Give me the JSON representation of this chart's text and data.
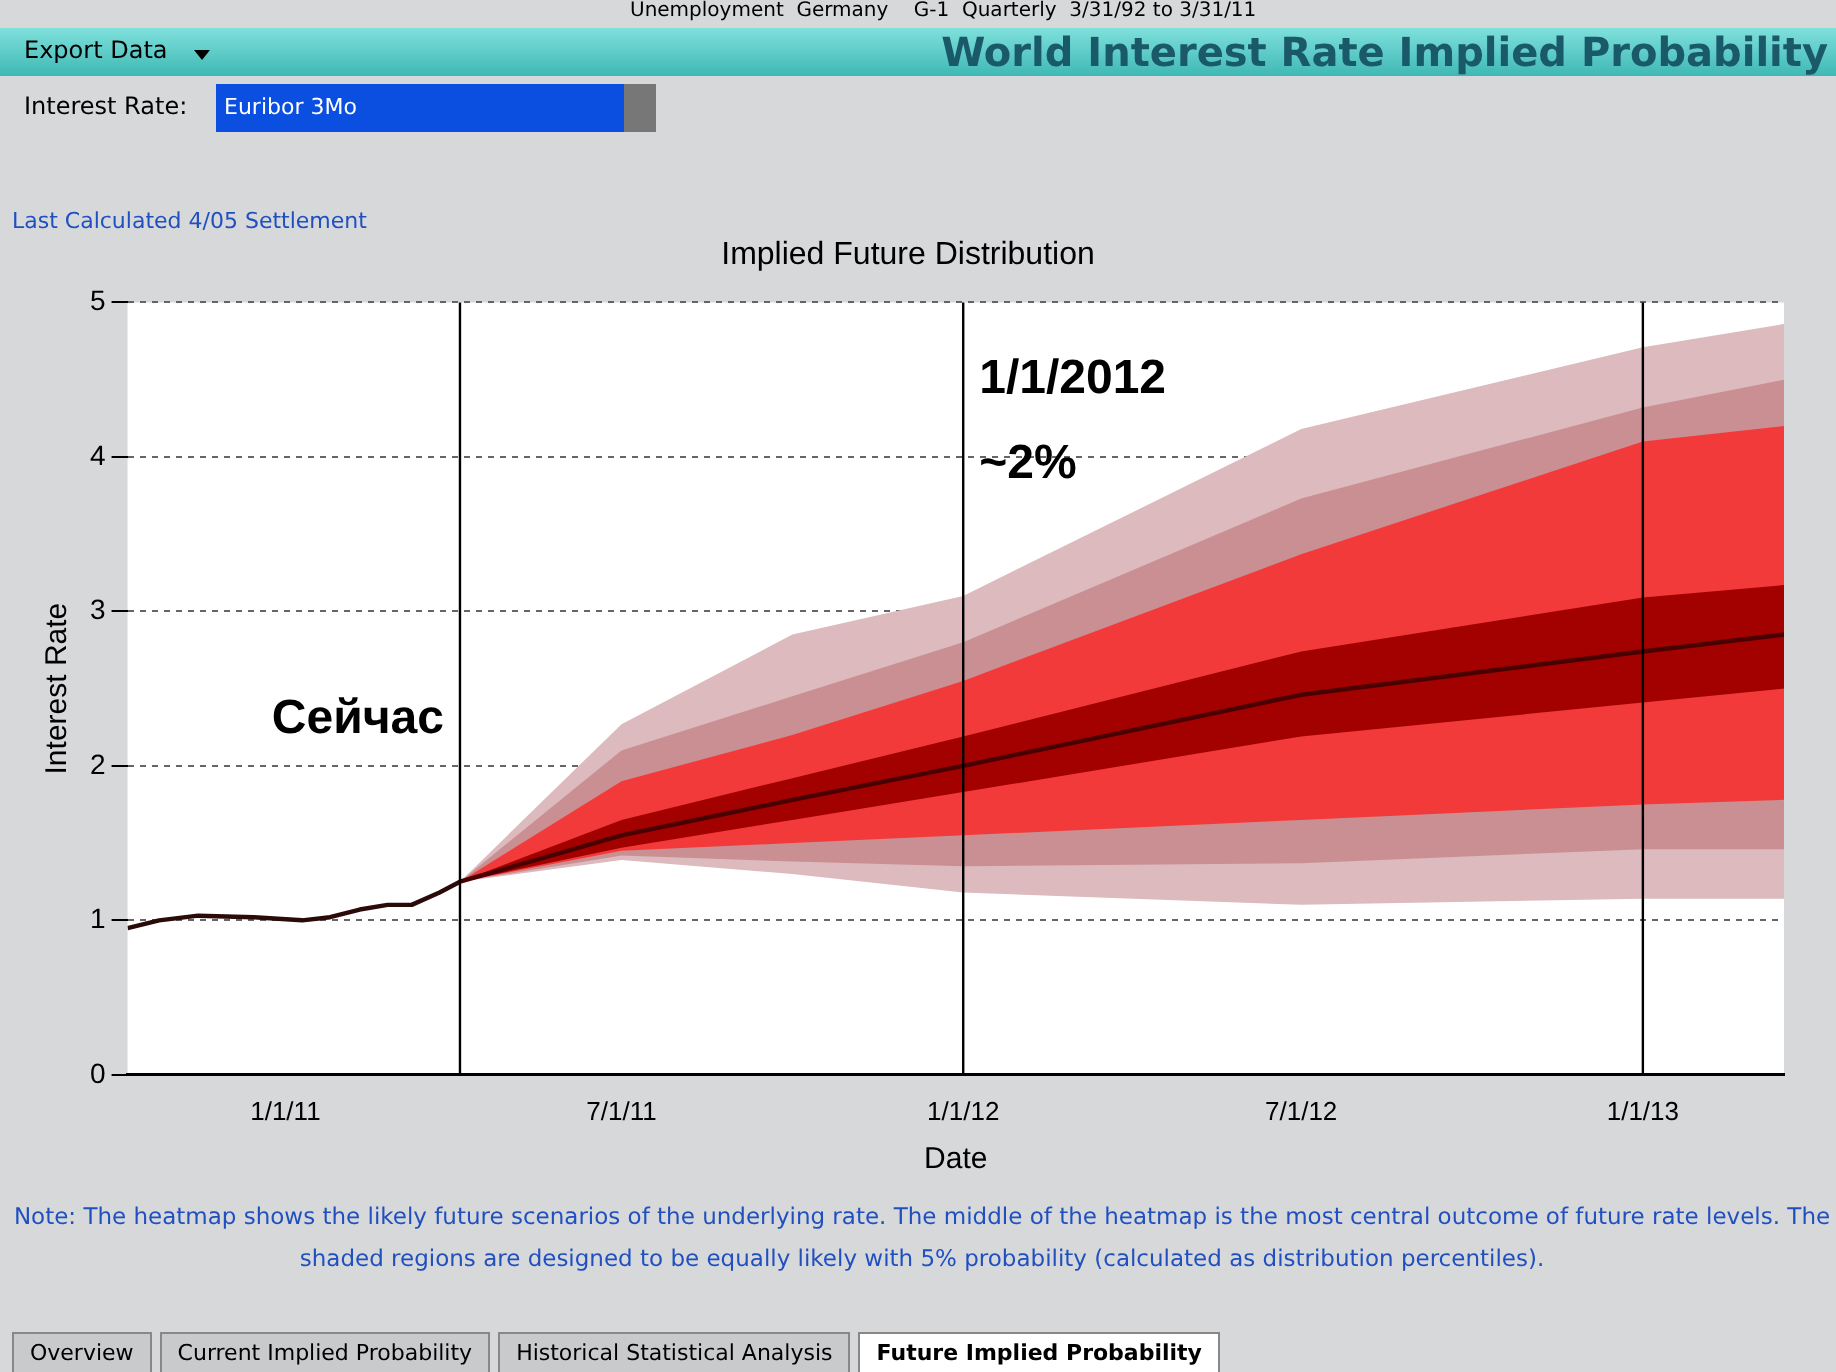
{
  "chart_data": {
    "type": "line",
    "title": "Implied Future Distribution",
    "subtitle": "World Interest Rate Implied Probability",
    "xlabel": "Date",
    "ylabel": "Interest Rate",
    "annotations": [
      "Unemployment  Germany    G-1  Quarterly  3/31/92 to 3/31/11",
      "Export Data",
      "Interest Rate:",
      "Euribor 3Mo",
      "Last Calculated 4/05 Settlement",
      "Note: The heatmap shows the likely future scenarios of the underlying rate. The middle of the heatmap is the most central outcome of future rate levels. The shaded regions are designed to be equally likely with 5% probability (calculated as distribution percentiles).",
      "Overview",
      "Current Implied Probability",
      "Historical Statistical Analysis",
      "Future Implied Probability",
      {
        "text": "Сейчас",
        "x": "2011-04-05",
        "y": 2.3
      },
      {
        "text": "1/1/2012",
        "x": "2012-01-01",
        "y": 4.5
      },
      {
        "text": "~2%",
        "x": "2012-01-01",
        "y": 3.95
      }
    ],
    "xlim": [
      "2010-10-08",
      "2013-03-18"
    ],
    "xticks": [
      {
        "value": "2011-01-01",
        "label": "1/1/11"
      },
      {
        "value": "2011-07-01",
        "label": "7/1/11"
      },
      {
        "value": "2012-01-01",
        "label": "1/1/12"
      },
      {
        "value": "2012-07-01",
        "label": "7/1/12"
      },
      {
        "value": "2013-01-01",
        "label": "1/1/13"
      }
    ],
    "ylim": [
      0,
      5
    ],
    "yticks": [
      0,
      1,
      2,
      3,
      4,
      5
    ],
    "grid": "y",
    "legend": false,
    "line_style": "solid",
    "marker": "none",
    "ref_lines": [
      {
        "axis": "x",
        "value": "2011-04-05",
        "color": "#000000"
      },
      {
        "axis": "x",
        "value": "2012-01-01",
        "color": "#000000"
      },
      {
        "axis": "x",
        "value": "2013-01-01",
        "color": "#000000"
      }
    ],
    "series": [
      {
        "type": "line",
        "color": "#2b0a0a",
        "x": [
          "2010-10-08",
          "2010-10-25",
          "2010-11-15",
          "2010-12-15",
          "2011-01-10",
          "2011-01-25",
          "2011-02-10",
          "2011-02-25",
          "2011-03-10",
          "2011-03-25",
          "2011-04-05"
        ],
        "values": [
          0.95,
          1.0,
          1.03,
          1.02,
          1.0,
          1.02,
          1.07,
          1.1,
          1.1,
          1.18,
          1.25
        ]
      },
      {
        "type": "line",
        "color": "#dcbabd",
        "x": [
          "2011-04-05",
          "2011-07-01",
          "2011-10-01",
          "2012-01-01",
          "2012-07-01",
          "2013-01-01",
          "2013-03-18"
        ],
        "values": [
          null,
          null,
          null,
          null,
          null,
          null,
          null
        ],
        "lower": [
          1.25,
          1.39,
          1.3,
          1.18,
          1.1,
          1.14,
          1.14
        ],
        "upper": [
          1.25,
          2.27,
          2.85,
          3.1,
          4.18,
          4.71,
          4.86
        ]
      },
      {
        "type": "line",
        "color": "#c98f93",
        "x": [
          "2011-04-05",
          "2011-07-01",
          "2011-10-01",
          "2012-01-01",
          "2012-07-01",
          "2013-01-01",
          "2013-03-18"
        ],
        "values": [
          null,
          null,
          null,
          null,
          null,
          null,
          null
        ],
        "lower": [
          1.25,
          1.42,
          1.38,
          1.35,
          1.37,
          1.46,
          1.46
        ],
        "upper": [
          1.25,
          2.1,
          2.45,
          2.8,
          3.73,
          4.32,
          4.5
        ]
      },
      {
        "type": "line",
        "color": "#f23a3a",
        "x": [
          "2011-04-05",
          "2011-07-01",
          "2011-10-01",
          "2012-01-01",
          "2012-07-01",
          "2013-01-01",
          "2013-03-18"
        ],
        "values": [
          null,
          null,
          null,
          null,
          null,
          null,
          null
        ],
        "lower": [
          1.25,
          1.45,
          1.5,
          1.55,
          1.65,
          1.75,
          1.78
        ],
        "upper": [
          1.25,
          1.9,
          2.2,
          2.55,
          3.37,
          4.1,
          4.2
        ]
      },
      {
        "type": "line",
        "color": "#a30000",
        "x": [
          "2011-04-05",
          "2011-07-01",
          "2011-10-01",
          "2012-01-01",
          "2012-07-01",
          "2013-01-01",
          "2013-03-18"
        ],
        "values": [
          null,
          null,
          null,
          null,
          null,
          null,
          null
        ],
        "lower": [
          1.25,
          1.47,
          1.65,
          1.83,
          2.19,
          2.41,
          2.5
        ],
        "upper": [
          1.25,
          1.65,
          1.92,
          2.19,
          2.74,
          3.09,
          3.17
        ]
      },
      {
        "type": "line",
        "color": "#4a0000",
        "x": [
          "2011-04-05",
          "2011-07-01",
          "2011-10-01",
          "2012-01-01",
          "2012-07-01",
          "2013-01-01",
          "2013-03-18"
        ],
        "values": [
          1.25,
          1.55,
          1.78,
          2.0,
          2.46,
          2.74,
          2.85
        ]
      }
    ]
  }
}
